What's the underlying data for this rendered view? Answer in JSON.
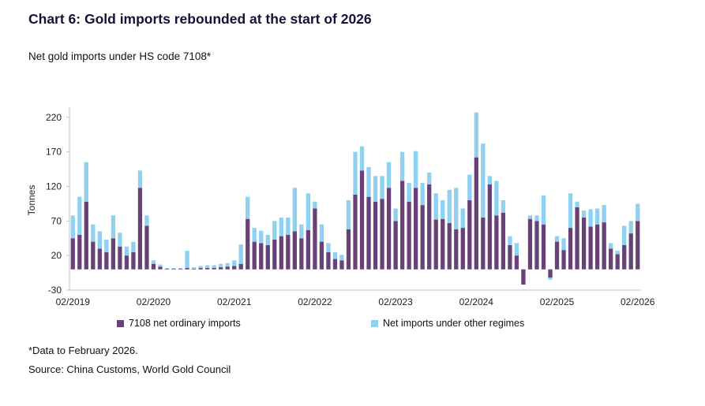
{
  "title": "Chart 6: Gold imports rebounded at the start of 2026",
  "subtitle": "Net gold imports under HS code 7108*",
  "footnote": "*Data to February 2026.",
  "source": "Source: China Customs, World Gold Council",
  "legend": [
    {
      "label": "7108 net ordinary imports",
      "color": "#684176"
    },
    {
      "label": "Net imports under other regimes",
      "color": "#8fd1f1"
    }
  ],
  "chart_data": {
    "type": "bar",
    "stacked": true,
    "title": "Chart 6: Gold imports rebounded at the start of 2026",
    "subtitle": "Net gold imports under HS code 7108*",
    "xlabel": "",
    "ylabel": "Tonnes",
    "ylim": [
      -30,
      230
    ],
    "yticks": [
      -30,
      20,
      70,
      120,
      170,
      220
    ],
    "grid": false,
    "legend_position": "bottom",
    "categories": [
      "2019-02",
      "2019-03",
      "2019-04",
      "2019-05",
      "2019-06",
      "2019-07",
      "2019-08",
      "2019-09",
      "2019-10",
      "2019-11",
      "2019-12",
      "2020-01",
      "2020-02",
      "2020-03",
      "2020-04",
      "2020-05",
      "2020-06",
      "2020-07",
      "2020-08",
      "2020-09",
      "2020-10",
      "2020-11",
      "2020-12",
      "2021-01",
      "2021-02",
      "2021-03",
      "2021-04",
      "2021-05",
      "2021-06",
      "2021-07",
      "2021-08",
      "2021-09",
      "2021-10",
      "2021-11",
      "2021-12",
      "2022-01",
      "2022-02",
      "2022-03",
      "2022-04",
      "2022-05",
      "2022-06",
      "2022-07",
      "2022-08",
      "2022-09",
      "2022-10",
      "2022-11",
      "2022-12",
      "2023-01",
      "2023-02",
      "2023-03",
      "2023-04",
      "2023-05",
      "2023-06",
      "2023-07",
      "2023-08",
      "2023-09",
      "2023-10",
      "2023-11",
      "2023-12",
      "2024-01",
      "2024-02",
      "2024-03",
      "2024-04",
      "2024-05",
      "2024-06",
      "2024-07",
      "2024-08",
      "2024-09",
      "2024-10",
      "2024-11",
      "2024-12",
      "2025-01",
      "2025-02",
      "2025-03",
      "2025-04",
      "2025-05",
      "2025-06",
      "2025-07",
      "2025-08",
      "2025-09",
      "2025-10",
      "2025-11",
      "2025-12",
      "2026-01",
      "2026-02"
    ],
    "xticks": [
      {
        "index": 0,
        "label": "02/2019"
      },
      {
        "index": 12,
        "label": "02/2020"
      },
      {
        "index": 24,
        "label": "02/2021"
      },
      {
        "index": 36,
        "label": "02/2022"
      },
      {
        "index": 48,
        "label": "02/2023"
      },
      {
        "index": 60,
        "label": "02/2024"
      },
      {
        "index": 72,
        "label": "02/2025"
      },
      {
        "index": 84,
        "label": "02/2026"
      }
    ],
    "series": [
      {
        "name": "7108 net ordinary imports",
        "color": "#684176",
        "values": [
          45,
          50,
          98,
          40,
          30,
          25,
          45,
          33,
          20,
          25,
          118,
          63,
          8,
          4,
          1,
          1,
          1,
          2,
          1,
          2,
          2,
          2,
          3,
          4,
          5,
          8,
          73,
          40,
          38,
          35,
          43,
          48,
          50,
          55,
          45,
          57,
          88,
          40,
          25,
          15,
          13,
          58,
          108,
          143,
          105,
          98,
          102,
          118,
          70,
          128,
          98,
          118,
          93,
          123,
          72,
          73,
          67,
          58,
          60,
          100,
          162,
          75,
          123,
          78,
          82,
          35,
          20,
          -22,
          73,
          70,
          65,
          -12,
          40,
          28,
          60,
          90,
          75,
          62,
          65,
          68,
          30,
          22,
          35,
          52,
          70
        ]
      },
      {
        "name": "Net imports under other regimes",
        "color": "#8fd1f1",
        "values": [
          33,
          55,
          57,
          25,
          25,
          18,
          33,
          20,
          13,
          15,
          25,
          15,
          5,
          3,
          1,
          1,
          1,
          25,
          2,
          3,
          4,
          4,
          5,
          5,
          8,
          28,
          32,
          20,
          18,
          15,
          27,
          27,
          25,
          63,
          20,
          53,
          10,
          25,
          13,
          10,
          8,
          42,
          62,
          35,
          43,
          37,
          33,
          37,
          18,
          42,
          27,
          53,
          32,
          17,
          38,
          27,
          48,
          60,
          28,
          37,
          65,
          107,
          12,
          50,
          18,
          13,
          18,
          0,
          5,
          8,
          42,
          -3,
          8,
          17,
          50,
          8,
          10,
          25,
          23,
          25,
          8,
          5,
          28,
          18,
          25
        ]
      }
    ]
  }
}
